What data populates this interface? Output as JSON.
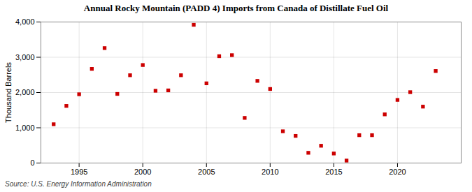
{
  "chart_data": {
    "type": "scatter",
    "title": "Annual Rocky Mountain (PADD 4) Imports from Canada of Distillate Fuel Oil",
    "ylabel": "Thousand Barrels",
    "source": "Source: U.S. Energy Information Administration",
    "x": [
      1993,
      1994,
      1995,
      1996,
      1997,
      1998,
      1999,
      2000,
      2001,
      2002,
      2003,
      2004,
      2005,
      2006,
      2007,
      2008,
      2009,
      2010,
      2011,
      2012,
      2013,
      2014,
      2015,
      2016,
      2017,
      2018,
      2019,
      2020,
      2021,
      2022,
      2023
    ],
    "values": [
      1100,
      1620,
      1950,
      2670,
      3260,
      1960,
      2490,
      2780,
      2050,
      2060,
      2490,
      3920,
      2260,
      3030,
      3060,
      1280,
      2330,
      2100,
      900,
      770,
      290,
      490,
      270,
      70,
      790,
      790,
      1380,
      1790,
      2010,
      1600,
      2610
    ],
    "color": "#cc0000",
    "marker": "square",
    "xlim": [
      1992,
      2025
    ],
    "xticks": [
      1995,
      2000,
      2005,
      2010,
      2015,
      2020
    ],
    "ylim": [
      0,
      4000
    ],
    "yticks": [
      0,
      {
        "value": 1000,
        "label": "1,000"
      },
      {
        "value": 2000,
        "label": "2,000"
      },
      {
        "value": 3000,
        "label": "3,000"
      },
      {
        "value": 4000,
        "label": "4,000"
      }
    ],
    "grid": true
  }
}
